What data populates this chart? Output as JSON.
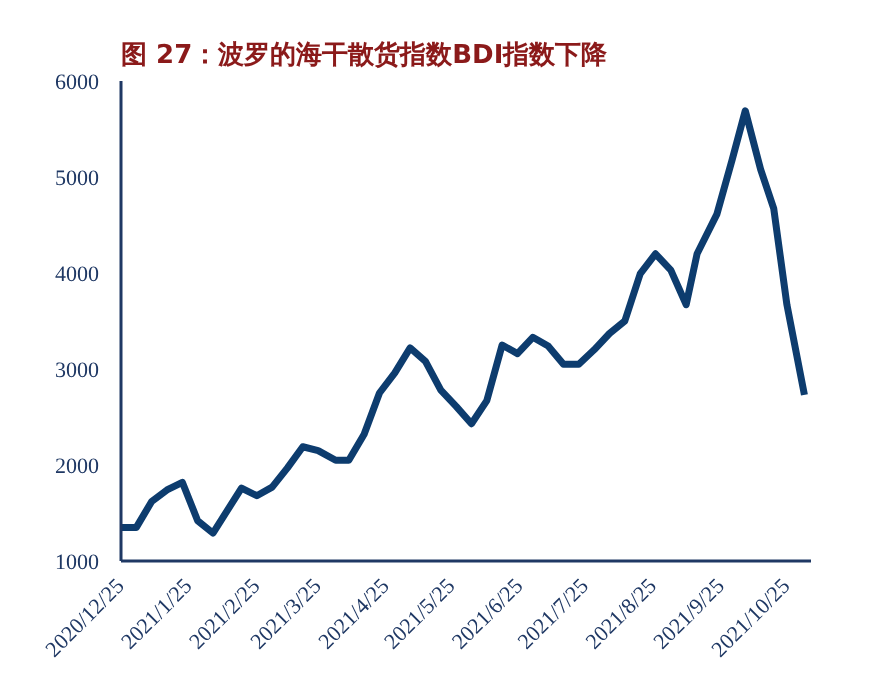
{
  "chart_data": {
    "type": "line",
    "title": "图 27：波罗的海干散货指数BDI指数下降",
    "x": [
      "2020-12-25",
      "2021-01-01",
      "2021-01-08",
      "2021-01-15",
      "2021-01-22",
      "2021-01-29",
      "2021-02-05",
      "2021-02-18",
      "2021-02-25",
      "2021-03-04",
      "2021-03-11",
      "2021-03-18",
      "2021-03-25",
      "2021-04-02",
      "2021-04-08",
      "2021-04-15",
      "2021-04-22",
      "2021-04-29",
      "2021-05-06",
      "2021-05-13",
      "2021-05-20",
      "2021-05-27",
      "2021-06-03",
      "2021-06-10",
      "2021-06-17",
      "2021-06-24",
      "2021-07-01",
      "2021-07-08",
      "2021-07-15",
      "2021-07-22",
      "2021-07-29",
      "2021-08-05",
      "2021-08-12",
      "2021-08-19",
      "2021-08-26",
      "2021-09-02",
      "2021-09-09",
      "2021-09-14",
      "2021-09-23",
      "2021-09-30",
      "2021-10-06",
      "2021-10-13",
      "2021-10-19",
      "2021-10-25",
      "2021-11-02"
    ],
    "series": [
      {
        "color": "#0d3c6e",
        "values": [
          1350,
          1350,
          1620,
          1740,
          1820,
          1420,
          1290,
          1760,
          1680,
          1770,
          1970,
          2190,
          2150,
          2050,
          2050,
          2320,
          2750,
          2960,
          3220,
          3080,
          2780,
          2610,
          2430,
          2670,
          3250,
          3160,
          3330,
          3240,
          3050,
          3050,
          3200,
          3370,
          3500,
          3990,
          4200,
          4030,
          3670,
          4200,
          4610,
          5180,
          5690,
          5080,
          4670,
          3670,
          2730
        ]
      }
    ],
    "ylim": [
      1000,
      6000
    ],
    "yticks": [
      1000,
      2000,
      3000,
      4000,
      5000,
      6000
    ],
    "xlim": [
      "2020-12-25",
      "2021-11-05"
    ],
    "xticks": [
      {
        "value": "2020-12-25",
        "label": "2020/12/25"
      },
      {
        "value": "2021-01-25",
        "label": "2021/1/25"
      },
      {
        "value": "2021-02-25",
        "label": "2021/2/25"
      },
      {
        "value": "2021-03-25",
        "label": "2021/3/25"
      },
      {
        "value": "2021-04-25",
        "label": "2021/4/25"
      },
      {
        "value": "2021-05-25",
        "label": "2021/5/25"
      },
      {
        "value": "2021-06-25",
        "label": "2021/6/25"
      },
      {
        "value": "2021-07-25",
        "label": "2021/7/25"
      },
      {
        "value": "2021-08-25",
        "label": "2021/8/25"
      },
      {
        "value": "2021-09-25",
        "label": "2021/9/25"
      },
      {
        "value": "2021-10-25",
        "label": "2021/10/25"
      }
    ],
    "grid": false,
    "line_style": "solid",
    "marker": "none"
  }
}
